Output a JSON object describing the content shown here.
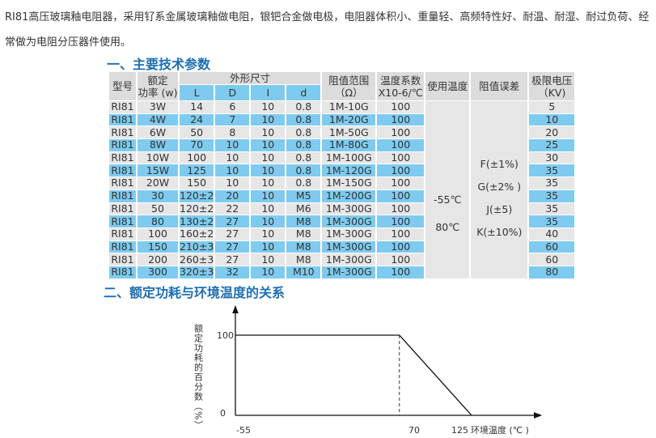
{
  "intro": "RI81高压玻璃釉电阻器，采用钌系金属玻璃釉做电阻，银钯合金做电极，电阻器体积小、重量轻、高频特性好、耐温、耐湿、耐过负荷、经常做为电阻分压器件使用。",
  "section1_title": "一、主要技术参数",
  "section2_title": "二、额定功耗与环境温度的关系",
  "table": {
    "headers": {
      "model": "型号",
      "power_1": "额定",
      "power_2": "功率 (w)",
      "dims": "外形尺寸",
      "L": "L",
      "D": "D",
      "I": "I",
      "d": "d",
      "range_1": "阻值范围",
      "range_2": "（Ω）",
      "coef_1": "温度系数",
      "coef_2": "X10-6/℃",
      "temp": "使用温度",
      "tol": "阻值误差",
      "volt_1": "极限电压",
      "volt_2": "（KV)"
    },
    "rows": [
      [
        "RI81",
        "3W",
        "14",
        "6",
        "10",
        "0.8",
        "1M-10G",
        "100",
        "5"
      ],
      [
        "RI81",
        "4W",
        "24",
        "7",
        "10",
        "0.8",
        "1M-20G",
        "100",
        "10"
      ],
      [
        "RI81",
        "6W",
        "50",
        "8",
        "10",
        "0.8",
        "1M-50G",
        "100",
        "20"
      ],
      [
        "RI81",
        "8W",
        "70",
        "10",
        "10",
        "0.8",
        "1M-80G",
        "100",
        "25"
      ],
      [
        "RI81",
        "10W",
        "100",
        "10",
        "10",
        "0.8",
        "1M-100G",
        "100",
        "30"
      ],
      [
        "RI81",
        "15W",
        "125",
        "10",
        "10",
        "0.8",
        "1M-120G",
        "100",
        "35"
      ],
      [
        "RI81",
        "20W",
        "150",
        "10",
        "10",
        "0.8",
        "1M-150G",
        "100",
        "35"
      ],
      [
        "RI81",
        "30",
        "120±2",
        "20",
        "10",
        "M5",
        "1M-200G",
        "100",
        "35"
      ],
      [
        "RI81",
        "50",
        "120±2",
        "22",
        "10",
        "M6",
        "1M-300G",
        "100",
        "35"
      ],
      [
        "RI81",
        "80",
        "130±2",
        "27",
        "10",
        "M8",
        "1M-300G",
        "100",
        "35"
      ],
      [
        "RI81",
        "100",
        "160±2",
        "27",
        "10",
        "M8",
        "1M-300G",
        "100",
        "40"
      ],
      [
        "RI81",
        "150",
        "210±3",
        "27",
        "10",
        "M8",
        "1M-300G",
        "100",
        "60"
      ],
      [
        "RI81",
        "200",
        "260±3",
        "27",
        "10",
        "M8",
        "1M-300G",
        "100",
        "60"
      ],
      [
        "RI81",
        "300",
        "320±3",
        "32",
        "10",
        "M10",
        "1M-300G",
        "100",
        "80"
      ]
    ],
    "use_temp": [
      "-55℃",
      "80℃"
    ],
    "tolerance": [
      "F(±1%)",
      "G(±2% )",
      "J(±5)",
      "K(±10%)"
    ]
  },
  "chart_data": {
    "type": "line",
    "x": [
      -55,
      70,
      125
    ],
    "y": [
      100,
      100,
      0
    ],
    "x_ticks": [
      "-55",
      "70",
      "125"
    ],
    "y_ticks": [
      "100",
      "0"
    ],
    "xlabel": "环境温度 (℃ )",
    "ylabel": "额定功耗的百分数（%）",
    "xlim": [
      -55,
      125
    ],
    "ylim": [
      0,
      100
    ],
    "annotation": "dashed vertical line at 70"
  }
}
